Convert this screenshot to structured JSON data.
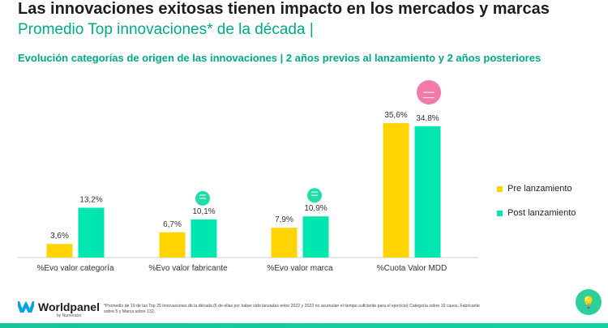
{
  "title": "Las innovaciones exitosas tienen impacto en los mercados y marcas",
  "subtitle": "Promedio Top innovaciones* de la década  |",
  "chart_title": "Evolución categorías de origen de las innovaciones |  2 años previos al lanzamiento y 2 años posteriores",
  "chart_data": {
    "type": "bar",
    "categories": [
      "%Evo valor categoría",
      "%Evo valor fabricante",
      "%Evo valor marca",
      "%Cuota Valor MDD"
    ],
    "series": [
      {
        "name": "Pre  lanzamiento",
        "values": [
          3.6,
          6.7,
          7.9,
          35.6
        ],
        "labels": [
          "3,6%",
          "6,7%",
          "7,9%",
          "35,6%"
        ],
        "color": "#ffd400"
      },
      {
        "name": "Post lanzamiento",
        "values": [
          13.2,
          10.1,
          10.9,
          34.8
        ],
        "labels": [
          "13,2%",
          "10,1%",
          "10,9%",
          "34,8%"
        ],
        "color": "#00e6b0"
      }
    ],
    "indicators": [
      null,
      "up",
      "up",
      "down"
    ],
    "indicator_colors": {
      "up": "#1fdca8",
      "down": "#f27aa6"
    },
    "legend": "right",
    "grid": false
  },
  "logo": {
    "name": "Worldpanel",
    "sub": "by Numerator"
  },
  "footnote": "*Promedio de 19 de las Top 25 innovaciones de la década (6 de ellas por haber sido lanzadas entre 2022 y 2023 no acumulan el tiempo suficiente para el ejercicio) Categoría sobre 19 casos, Fabricante sobre 5 y Marca sobre 132."
}
